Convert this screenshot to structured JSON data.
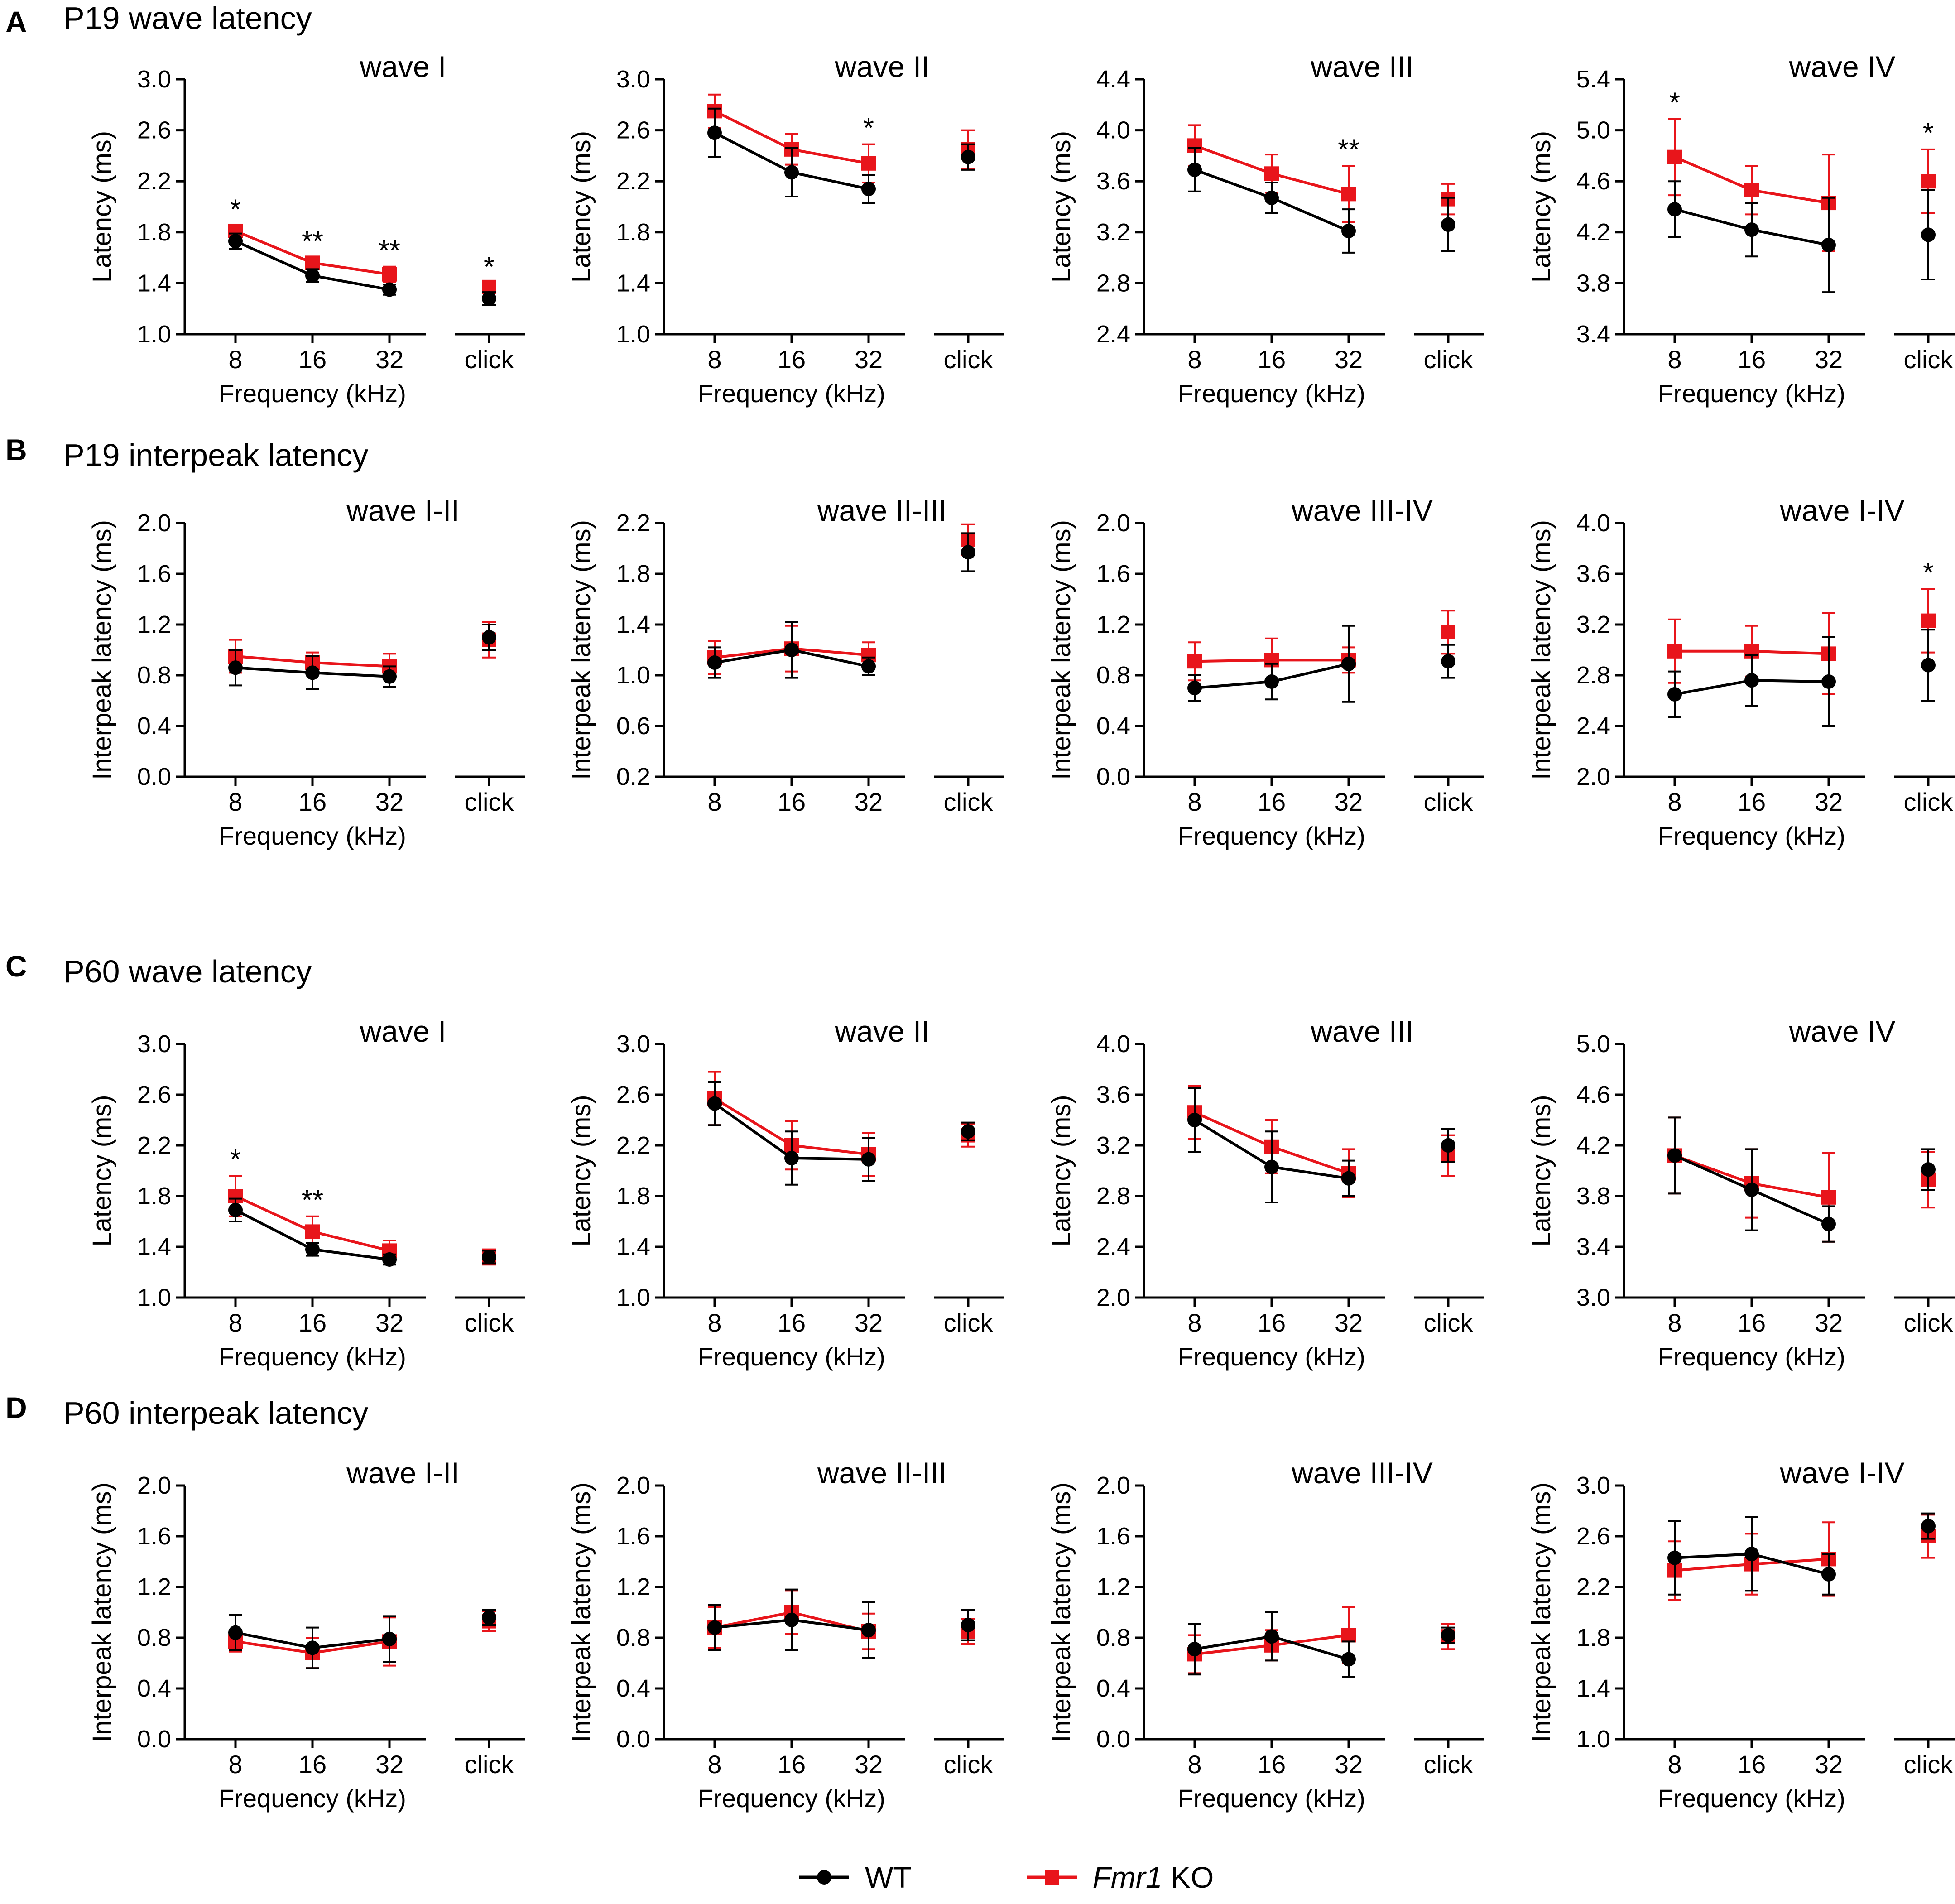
{
  "sections": [
    {
      "letter": "A",
      "title": "P19 wave latency"
    },
    {
      "letter": "B",
      "title": "P19 interpeak latency"
    },
    {
      "letter": "C",
      "title": "P60 wave latency"
    },
    {
      "letter": "D",
      "title": "P60 interpeak latency"
    }
  ],
  "legend": {
    "wt_label": "WT",
    "ko_gene": "Fmr1",
    "ko_suffix": " KO"
  },
  "colors": {
    "wt": "#000000",
    "ko": "#e8151b"
  },
  "chart_data": [
    {
      "type": "line",
      "section": "A",
      "title": "wave I",
      "xlabel": "Frequency (kHz)",
      "ylabel": "Latency (ms)",
      "categories": [
        "8",
        "16",
        "32"
      ],
      "click_label": "click",
      "ylim": [
        1.0,
        3.0
      ],
      "yticks": [
        "1.0",
        "1.4",
        "1.8",
        "2.2",
        "2.6",
        "3.0"
      ],
      "series": [
        {
          "name": "WT",
          "values": [
            1.73,
            1.46,
            1.35
          ],
          "err": [
            0.06,
            0.05,
            0.04
          ],
          "click": 1.28,
          "click_err": 0.05
        },
        {
          "name": "Fmr1 KO",
          "values": [
            1.81,
            1.56,
            1.47
          ],
          "err": [
            0.04,
            0.04,
            0.06
          ],
          "click": 1.37,
          "click_err": 0.03
        }
      ],
      "stars": [
        "*",
        "**",
        "**"
      ],
      "click_star": "*"
    },
    {
      "type": "line",
      "section": "A",
      "title": "wave II",
      "xlabel": "Frequency (kHz)",
      "ylabel": "Latency (ms)",
      "categories": [
        "8",
        "16",
        "32"
      ],
      "click_label": "click",
      "ylim": [
        1.0,
        3.0
      ],
      "yticks": [
        "1.0",
        "1.4",
        "1.8",
        "2.2",
        "2.6",
        "3.0"
      ],
      "series": [
        {
          "name": "WT",
          "values": [
            2.58,
            2.27,
            2.14
          ],
          "err": [
            0.19,
            0.19,
            0.11
          ],
          "click": 2.39,
          "click_err": 0.1
        },
        {
          "name": "Fmr1 KO",
          "values": [
            2.75,
            2.45,
            2.34
          ],
          "err": [
            0.13,
            0.12,
            0.15
          ],
          "click": 2.45,
          "click_err": 0.15
        }
      ],
      "stars": [
        "",
        "",
        "*"
      ],
      "click_star": ""
    },
    {
      "type": "line",
      "section": "A",
      "title": "wave III",
      "xlabel": "Frequency (kHz)",
      "ylabel": "Latency (ms)",
      "categories": [
        "8",
        "16",
        "32"
      ],
      "click_label": "click",
      "ylim": [
        2.4,
        4.4
      ],
      "yticks": [
        "2.4",
        "2.8",
        "3.2",
        "3.6",
        "4.0",
        "4.4"
      ],
      "series": [
        {
          "name": "WT",
          "values": [
            3.69,
            3.47,
            3.21
          ],
          "err": [
            0.17,
            0.12,
            0.17
          ],
          "click": 3.26,
          "click_err": 0.21
        },
        {
          "name": "Fmr1 KO",
          "values": [
            3.88,
            3.66,
            3.5
          ],
          "err": [
            0.16,
            0.15,
            0.22
          ],
          "click": 3.46,
          "click_err": 0.12
        }
      ],
      "stars": [
        "",
        "",
        "**"
      ],
      "click_star": ""
    },
    {
      "type": "line",
      "section": "A",
      "title": "wave IV",
      "xlabel": "Frequency (kHz)",
      "ylabel": "Latency (ms)",
      "categories": [
        "8",
        "16",
        "32"
      ],
      "click_label": "click",
      "ylim": [
        3.4,
        5.4
      ],
      "yticks": [
        "3.4",
        "3.8",
        "4.2",
        "4.6",
        "5.0",
        "5.4"
      ],
      "series": [
        {
          "name": "WT",
          "values": [
            4.38,
            4.22,
            4.1
          ],
          "err": [
            0.22,
            0.21,
            0.37
          ],
          "click": 4.18,
          "click_err": 0.35
        },
        {
          "name": "Fmr1 KO",
          "values": [
            4.79,
            4.53,
            4.43
          ],
          "err": [
            0.3,
            0.19,
            0.38
          ],
          "click": 4.6,
          "click_err": 0.25
        }
      ],
      "stars": [
        "*",
        "",
        ""
      ],
      "click_star": "*"
    },
    {
      "type": "line",
      "section": "B",
      "title": "wave I-II",
      "xlabel": "Frequency (kHz)",
      "ylabel": "Interpeak latency (ms)",
      "categories": [
        "8",
        "16",
        "32"
      ],
      "click_label": "click",
      "ylim": [
        0.0,
        2.0
      ],
      "yticks": [
        "0.0",
        "0.4",
        "0.8",
        "1.2",
        "1.6",
        "2.0"
      ],
      "series": [
        {
          "name": "WT",
          "values": [
            0.86,
            0.82,
            0.79
          ],
          "err": [
            0.14,
            0.13,
            0.08
          ],
          "click": 1.1,
          "click_err": 0.1
        },
        {
          "name": "Fmr1 KO",
          "values": [
            0.95,
            0.9,
            0.87
          ],
          "err": [
            0.13,
            0.08,
            0.1
          ],
          "click": 1.08,
          "click_err": 0.14
        }
      ],
      "stars": [
        "",
        "",
        ""
      ],
      "click_star": ""
    },
    {
      "type": "line",
      "section": "B",
      "title": "wave II-III",
      "xlabel": "",
      "ylabel": "Interpeak latency (ms)",
      "categories": [
        "8",
        "16",
        "32"
      ],
      "click_label": "click",
      "ylim": [
        0.2,
        2.2
      ],
      "yticks": [
        "0.2",
        "0.6",
        "1.0",
        "1.4",
        "1.8",
        "2.2"
      ],
      "series": [
        {
          "name": "WT",
          "values": [
            1.1,
            1.2,
            1.07
          ],
          "err": [
            0.12,
            0.22,
            0.07
          ],
          "click": 1.97,
          "click_err": 0.15
        },
        {
          "name": "Fmr1 KO",
          "values": [
            1.14,
            1.21,
            1.16
          ],
          "err": [
            0.13,
            0.18,
            0.1
          ],
          "click": 2.07,
          "click_err": 0.12
        }
      ],
      "stars": [
        "",
        "",
        ""
      ],
      "click_star": ""
    },
    {
      "type": "line",
      "section": "B",
      "title": "wave III-IV",
      "xlabel": "Frequency (kHz)",
      "ylabel": "Interpeak latency (ms)",
      "categories": [
        "8",
        "16",
        "32"
      ],
      "click_label": "click",
      "ylim": [
        0.0,
        2.0
      ],
      "yticks": [
        "0.0",
        "0.4",
        "0.8",
        "1.2",
        "1.6",
        "2.0"
      ],
      "series": [
        {
          "name": "WT",
          "values": [
            0.7,
            0.75,
            0.89
          ],
          "err": [
            0.1,
            0.14,
            0.3
          ],
          "click": 0.91,
          "click_err": 0.13
        },
        {
          "name": "Fmr1 KO",
          "values": [
            0.91,
            0.92,
            0.92
          ],
          "err": [
            0.15,
            0.17,
            0.1
          ],
          "click": 1.14,
          "click_err": 0.17
        }
      ],
      "stars": [
        "",
        "",
        ""
      ],
      "click_star": ""
    },
    {
      "type": "line",
      "section": "B",
      "title": "wave I-IV",
      "xlabel": "Frequency (kHz)",
      "ylabel": "Interpeak latency (ms)",
      "categories": [
        "8",
        "16",
        "32"
      ],
      "click_label": "click",
      "ylim": [
        2.0,
        4.0
      ],
      "yticks": [
        "2.0",
        "2.4",
        "2.8",
        "3.2",
        "3.6",
        "4.0"
      ],
      "series": [
        {
          "name": "WT",
          "values": [
            2.65,
            2.76,
            2.75
          ],
          "err": [
            0.18,
            0.2,
            0.35
          ],
          "click": 2.88,
          "click_err": 0.28
        },
        {
          "name": "Fmr1 KO",
          "values": [
            2.99,
            2.99,
            2.97
          ],
          "err": [
            0.25,
            0.2,
            0.32
          ],
          "click": 3.23,
          "click_err": 0.25
        }
      ],
      "stars": [
        "",
        "",
        ""
      ],
      "click_star": "*"
    },
    {
      "type": "line",
      "section": "C",
      "title": "wave I",
      "xlabel": "Frequency (kHz)",
      "ylabel": "Latency (ms)",
      "categories": [
        "8",
        "16",
        "32"
      ],
      "click_label": "click",
      "ylim": [
        1.0,
        3.0
      ],
      "yticks": [
        "1.0",
        "1.4",
        "1.8",
        "2.2",
        "2.6",
        "3.0"
      ],
      "series": [
        {
          "name": "WT",
          "values": [
            1.69,
            1.38,
            1.3
          ],
          "err": [
            0.09,
            0.05,
            0.04
          ],
          "click": 1.32,
          "click_err": 0.05
        },
        {
          "name": "Fmr1 KO",
          "values": [
            1.8,
            1.52,
            1.37
          ],
          "err": [
            0.16,
            0.12,
            0.08
          ],
          "click": 1.32,
          "click_err": 0.06
        }
      ],
      "stars": [
        "*",
        "**",
        ""
      ],
      "click_star": ""
    },
    {
      "type": "line",
      "section": "C",
      "title": "wave II",
      "xlabel": "Frequency (kHz)",
      "ylabel": "Latency (ms)",
      "categories": [
        "8",
        "16",
        "32"
      ],
      "click_label": "click",
      "ylim": [
        1.0,
        3.0
      ],
      "yticks": [
        "1.0",
        "1.4",
        "1.8",
        "2.2",
        "2.6",
        "3.0"
      ],
      "series": [
        {
          "name": "WT",
          "values": [
            2.53,
            2.1,
            2.09
          ],
          "err": [
            0.17,
            0.21,
            0.17
          ],
          "click": 2.31,
          "click_err": 0.07
        },
        {
          "name": "Fmr1 KO",
          "values": [
            2.57,
            2.2,
            2.13
          ],
          "err": [
            0.21,
            0.19,
            0.17
          ],
          "click": 2.28,
          "click_err": 0.09
        }
      ],
      "stars": [
        "",
        "",
        ""
      ],
      "click_star": ""
    },
    {
      "type": "line",
      "section": "C",
      "title": "wave III",
      "xlabel": "Frequency (kHz)",
      "ylabel": "Latency (ms)",
      "categories": [
        "8",
        "16",
        "32"
      ],
      "click_label": "click",
      "ylim": [
        2.0,
        4.0
      ],
      "yticks": [
        "2.0",
        "2.4",
        "2.8",
        "3.2",
        "3.6",
        "4.0"
      ],
      "series": [
        {
          "name": "WT",
          "values": [
            3.4,
            3.03,
            2.94
          ],
          "err": [
            0.25,
            0.28,
            0.14
          ],
          "click": 3.2,
          "click_err": 0.13
        },
        {
          "name": "Fmr1 KO",
          "values": [
            3.46,
            3.19,
            2.98
          ],
          "err": [
            0.21,
            0.21,
            0.19
          ],
          "click": 3.12,
          "click_err": 0.16
        }
      ],
      "stars": [
        "",
        "",
        ""
      ],
      "click_star": ""
    },
    {
      "type": "line",
      "section": "C",
      "title": "wave IV",
      "xlabel": "Frequency (kHz)",
      "ylabel": "Latency (ms)",
      "categories": [
        "8",
        "16",
        "32"
      ],
      "click_label": "click",
      "ylim": [
        3.0,
        5.0
      ],
      "yticks": [
        "3.0",
        "3.4",
        "3.8",
        "4.2",
        "4.6",
        "5.0"
      ],
      "series": [
        {
          "name": "WT",
          "values": [
            4.12,
            3.85,
            3.58
          ],
          "err": [
            0.3,
            0.32,
            0.14
          ],
          "click": 4.01,
          "click_err": 0.16
        },
        {
          "name": "Fmr1 KO",
          "values": [
            4.12,
            3.9,
            3.79
          ],
          "err": [
            0.3,
            0.27,
            0.35
          ],
          "click": 3.93,
          "click_err": 0.22
        }
      ],
      "stars": [
        "",
        "",
        ""
      ],
      "click_star": ""
    },
    {
      "type": "line",
      "section": "D",
      "title": "wave I-II",
      "xlabel": "Frequency (kHz)",
      "ylabel": "Interpeak latency (ms)",
      "categories": [
        "8",
        "16",
        "32"
      ],
      "click_label": "click",
      "ylim": [
        0.0,
        2.0
      ],
      "yticks": [
        "0.0",
        "0.4",
        "0.8",
        "1.2",
        "1.6",
        "2.0"
      ],
      "series": [
        {
          "name": "WT",
          "values": [
            0.84,
            0.72,
            0.79
          ],
          "err": [
            0.14,
            0.16,
            0.18
          ],
          "click": 0.96,
          "click_err": 0.06
        },
        {
          "name": "Fmr1 KO",
          "values": [
            0.77,
            0.68,
            0.77
          ],
          "err": [
            0.08,
            0.12,
            0.19
          ],
          "click": 0.93,
          "click_err": 0.08
        }
      ],
      "stars": [
        "",
        "",
        ""
      ],
      "click_star": ""
    },
    {
      "type": "line",
      "section": "D",
      "title": "wave II-III",
      "xlabel": "Frequency (kHz)",
      "ylabel": "Interpeak latency (ms)",
      "categories": [
        "8",
        "16",
        "32"
      ],
      "click_label": "click",
      "ylim": [
        0.0,
        2.0
      ],
      "yticks": [
        "0.0",
        "0.4",
        "0.8",
        "1.2",
        "1.6",
        "2.0"
      ],
      "series": [
        {
          "name": "WT",
          "values": [
            0.88,
            0.94,
            0.86
          ],
          "err": [
            0.18,
            0.24,
            0.22
          ],
          "click": 0.9,
          "click_err": 0.12
        },
        {
          "name": "Fmr1 KO",
          "values": [
            0.88,
            1.0,
            0.85
          ],
          "err": [
            0.16,
            0.17,
            0.14
          ],
          "click": 0.85,
          "click_err": 0.1
        }
      ],
      "stars": [
        "",
        "",
        ""
      ],
      "click_star": ""
    },
    {
      "type": "line",
      "section": "D",
      "title": "wave III-IV",
      "xlabel": "Frequency (kHz)",
      "ylabel": "Interpeak latency (ms)",
      "categories": [
        "8",
        "16",
        "32"
      ],
      "click_label": "click",
      "ylim": [
        0.0,
        2.0
      ],
      "yticks": [
        "0.0",
        "0.4",
        "0.8",
        "1.2",
        "1.6",
        "2.0"
      ],
      "series": [
        {
          "name": "WT",
          "values": [
            0.71,
            0.81,
            0.63
          ],
          "err": [
            0.2,
            0.19,
            0.14
          ],
          "click": 0.82,
          "click_err": 0.06
        },
        {
          "name": "Fmr1 KO",
          "values": [
            0.67,
            0.74,
            0.82
          ],
          "err": [
            0.15,
            0.12,
            0.22
          ],
          "click": 0.81,
          "click_err": 0.1
        }
      ],
      "stars": [
        "",
        "",
        ""
      ],
      "click_star": ""
    },
    {
      "type": "line",
      "section": "D",
      "title": "wave I-IV",
      "xlabel": "Frequency (kHz)",
      "ylabel": "Interpeak latency (ms)",
      "categories": [
        "8",
        "16",
        "32"
      ],
      "click_label": "click",
      "ylim": [
        1.0,
        3.0
      ],
      "yticks": [
        "1.0",
        "1.4",
        "1.8",
        "2.2",
        "2.6",
        "3.0"
      ],
      "series": [
        {
          "name": "WT",
          "values": [
            2.43,
            2.46,
            2.3
          ],
          "err": [
            0.29,
            0.29,
            0.16
          ],
          "click": 2.68,
          "click_err": 0.1
        },
        {
          "name": "Fmr1 KO",
          "values": [
            2.33,
            2.38,
            2.42
          ],
          "err": [
            0.23,
            0.24,
            0.29
          ],
          "click": 2.6,
          "click_err": 0.17
        }
      ],
      "stars": [
        "",
        "",
        ""
      ],
      "click_star": ""
    }
  ]
}
